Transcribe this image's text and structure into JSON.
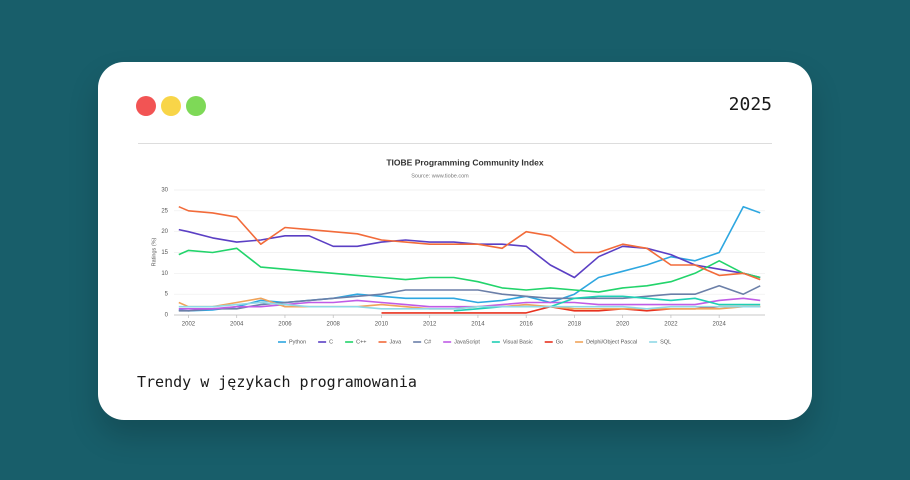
{
  "year": "2025",
  "caption": "Trendy w językach programowania",
  "chart_data": {
    "type": "line",
    "title": "TIOBE Programming Community Index",
    "subtitle": "Source: www.tiobe.com",
    "y_label": "Ratings (%)",
    "x": [
      2001.6,
      2002,
      2003,
      2004,
      2005,
      2006,
      2007,
      2008,
      2009,
      2010,
      2011,
      2012,
      2013,
      2014,
      2015,
      2016,
      2017,
      2018,
      2019,
      2020,
      2021,
      2022,
      2023,
      2024,
      2025,
      2025.7
    ],
    "xlim": [
      2001.4,
      2025.9
    ],
    "xticks": [
      2002,
      2004,
      2006,
      2008,
      2010,
      2012,
      2014,
      2016,
      2018,
      2020,
      2022,
      2024
    ],
    "ylim": [
      0,
      30
    ],
    "yticks": [
      0,
      5,
      10,
      15,
      20,
      25,
      30
    ],
    "grid": true,
    "series": [
      {
        "name": "Python",
        "color": "#2ea7e0",
        "values": [
          1.2,
          1,
          1.2,
          2,
          3.5,
          3,
          3.5,
          4,
          5,
          4.5,
          4,
          4,
          4,
          3,
          3.5,
          4.5,
          3,
          5,
          9,
          10.5,
          12,
          14,
          13,
          15,
          26,
          24.5
        ]
      },
      {
        "name": "C",
        "color": "#5b3fc4",
        "values": [
          20.5,
          20,
          18.5,
          17.5,
          18,
          19,
          19,
          16.5,
          16.5,
          17.5,
          18,
          17.5,
          17.5,
          17,
          17,
          16.5,
          12,
          9,
          14,
          16.5,
          16,
          14.5,
          12,
          11,
          10,
          9
        ]
      },
      {
        "name": "C++",
        "color": "#22d46b",
        "values": [
          14.5,
          15.5,
          15,
          16,
          11.5,
          11,
          10.5,
          10,
          9.5,
          9,
          8.5,
          9,
          9,
          8,
          6.5,
          6,
          6.5,
          6,
          5.5,
          6.5,
          7,
          8,
          10,
          13,
          10,
          9
        ]
      },
      {
        "name": "Java",
        "color": "#f26b3a",
        "values": [
          26,
          25,
          24.5,
          23.5,
          17,
          21,
          20.5,
          20,
          19.5,
          18,
          17.5,
          17,
          17,
          17,
          16,
          20,
          19,
          15,
          15,
          17,
          16,
          12,
          12,
          9.5,
          10,
          8.5
        ]
      },
      {
        "name": "C#",
        "color": "#6b7fa8",
        "values": [
          1,
          1,
          1.5,
          1.5,
          2.5,
          3,
          3.5,
          4,
          4.5,
          5,
          6,
          6,
          6,
          6,
          5,
          4.5,
          4,
          4,
          4,
          4,
          4.5,
          5,
          5,
          7,
          5,
          7
        ]
      },
      {
        "name": "JavaScript",
        "color": "#c05ce6",
        "values": [
          1.5,
          1.5,
          1.5,
          2,
          2,
          2.5,
          3,
          3,
          3.5,
          3,
          2.5,
          2,
          2,
          2,
          2.5,
          3,
          3,
          3,
          2.5,
          2.5,
          2.5,
          2.5,
          2.5,
          3.5,
          4,
          3.5
        ]
      },
      {
        "name": "Visual Basic",
        "color": "#1fcfb4",
        "values": [
          null,
          null,
          null,
          null,
          null,
          null,
          null,
          null,
          null,
          null,
          null,
          null,
          1,
          1.5,
          2,
          2,
          2,
          4,
          4.5,
          4.5,
          4,
          3.5,
          4,
          2.5,
          2.5,
          2.5
        ]
      },
      {
        "name": "Go",
        "color": "#e8321f",
        "values": [
          null,
          null,
          null,
          null,
          null,
          null,
          null,
          null,
          null,
          0.5,
          0.5,
          0.5,
          0.5,
          0.5,
          0.5,
          0.5,
          2,
          1,
          1,
          1.5,
          1,
          1.5,
          1.5,
          2,
          2,
          2
        ]
      },
      {
        "name": "Delphi/Object Pascal",
        "color": "#f0a35a",
        "values": [
          3,
          2,
          2,
          3,
          4,
          2,
          2,
          2,
          2,
          2.5,
          2,
          1.5,
          1.5,
          2,
          2,
          2.5,
          2,
          1.5,
          1.5,
          1.5,
          1.5,
          1.5,
          1.5,
          1.5,
          2,
          2
        ]
      },
      {
        "name": "SQL",
        "color": "#8fd9e6",
        "values": [
          2,
          2,
          2,
          2.5,
          3,
          2.5,
          2,
          2,
          2,
          1.5,
          1.5,
          1.5,
          1.5,
          2,
          2,
          2,
          2,
          2,
          2,
          2,
          1.5,
          2,
          2,
          2,
          2,
          2
        ]
      }
    ]
  }
}
